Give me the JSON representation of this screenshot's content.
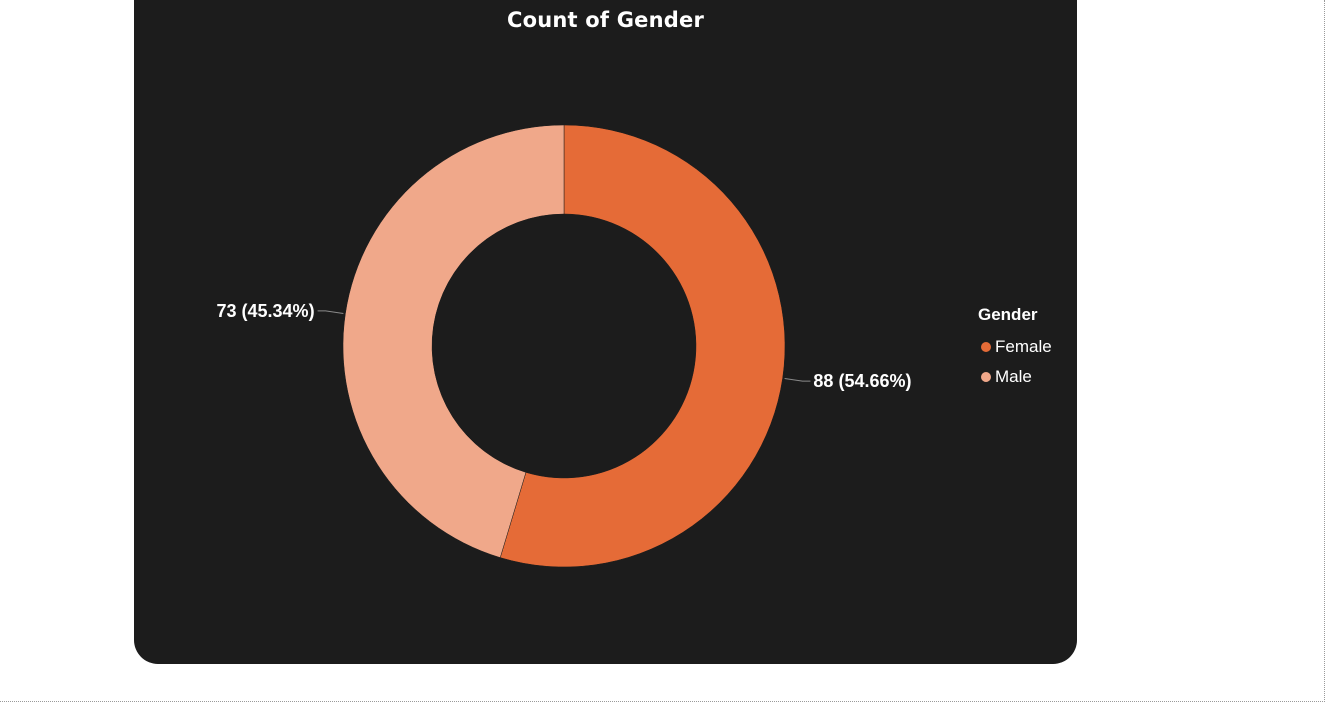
{
  "chart_data": {
    "type": "pie",
    "title": "Count of Gender",
    "categories": [
      "Female",
      "Male"
    ],
    "values": [
      88,
      73
    ],
    "percentages": [
      54.66,
      45.34
    ],
    "data_labels": [
      "88 (54.66%)",
      "73 (45.34%)"
    ],
    "colors": [
      "#e56b37",
      "#f0a88a"
    ],
    "donut": true,
    "legend": {
      "title": "Gender",
      "position": "right",
      "entries": [
        "Female",
        "Male"
      ]
    }
  },
  "theme": {
    "background": "#1c1c1c",
    "text": "#ffffff"
  }
}
